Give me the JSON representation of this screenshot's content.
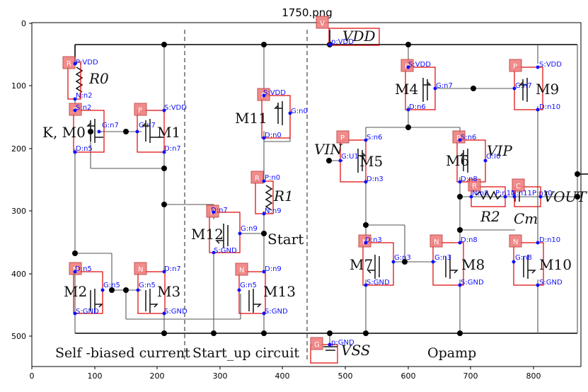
{
  "title": "1750.png",
  "axes": {
    "x_ticks": [
      "0",
      "100",
      "200",
      "300",
      "400",
      "500",
      "600",
      "700",
      "800"
    ],
    "y_ticks": [
      "0",
      "100",
      "200",
      "300",
      "400",
      "500"
    ]
  },
  "sections": {
    "self_biased": "Self -biased current",
    "startup": "Start_up circuit",
    "opamp": "Opamp"
  },
  "devices": {
    "R0": "R0",
    "K_M0": "K, M0",
    "M1": "M1",
    "M2": "M2",
    "M3": "M3",
    "M11": "M11",
    "R1": "R1",
    "Start": "Start",
    "M12": "M12",
    "M13": "M13",
    "VDD": "VDD",
    "VSS": "VSS",
    "VIN": "VIN",
    "M5": "M5",
    "M6": "M6",
    "VIP": "VIP",
    "M4": "M4",
    "M9": "M9",
    "M7": "M7",
    "M8": "M8",
    "M10": "M10",
    "R2": "R2",
    "Cm": "Cm",
    "VOUT": "VOUT"
  },
  "tags": {
    "V": "V",
    "G": "G",
    "R0": "R",
    "R1": "R",
    "R2": "R",
    "C": "C",
    "M0": "P",
    "M1": "P",
    "M11": "P",
    "M5": "P",
    "M6": "P",
    "M4": "P",
    "M9": "P",
    "M2": "N",
    "M3": "N",
    "M12": "N",
    "M13": "N",
    "M7": "N",
    "M8": "N",
    "M10": "N"
  },
  "pins": {
    "vdd_p": "p:VDD",
    "gnd_p": "p:GND",
    "r0_p": "P:VDD",
    "r0_n": "N:n2",
    "m0_s": "S:n2",
    "m0_g": "G:n7",
    "m0_d": "D:n5",
    "m1_s": "S:VDD",
    "m1_g": "G:n7",
    "m1_d": "D:n7",
    "m11_s": "S:VDD",
    "m11_g": "G:n0",
    "m11_d": "D:n0",
    "r1_p": "P:n0",
    "r1_n": "N:n9",
    "m12_d": "D:n7",
    "m12_g": "G:n9",
    "m12_s": "S:GND",
    "m2_d": "D:n5",
    "m2_g": "G:n5",
    "m2_s": "S:GND",
    "m3_d": "D:n7",
    "m3_g": "G:n5",
    "m3_s": "S:GND",
    "m13_d": "D:n9",
    "m13_g": "G:n5",
    "m13_s": "S:GND",
    "m5_s": "S:n6",
    "m5_g": "G:U1",
    "m5_d": "D:n3",
    "m6_s": "S:n6",
    "m6_g": "G:I0",
    "m6_d": "D:n8",
    "m4_s": "S:VDD",
    "m4_g": "G:n7",
    "m4_d": "D:n6",
    "m9_s": "S:VDD",
    "m9_g": "G:n7",
    "m9_d": "D:n10",
    "r2_n": "N:n8",
    "r2_p": "P:n11",
    "c_n": "N:n11",
    "c_p": "P:n10",
    "m7_d": "D:n3",
    "m7_g": "G:n3",
    "m7_s": "S:GND",
    "m8_d": "D:n8",
    "m8_g": "G:n3",
    "m8_s": "S:GND",
    "m10_d": "D:n10",
    "m10_g": "G:n8",
    "m10_s": "S:GND"
  }
}
